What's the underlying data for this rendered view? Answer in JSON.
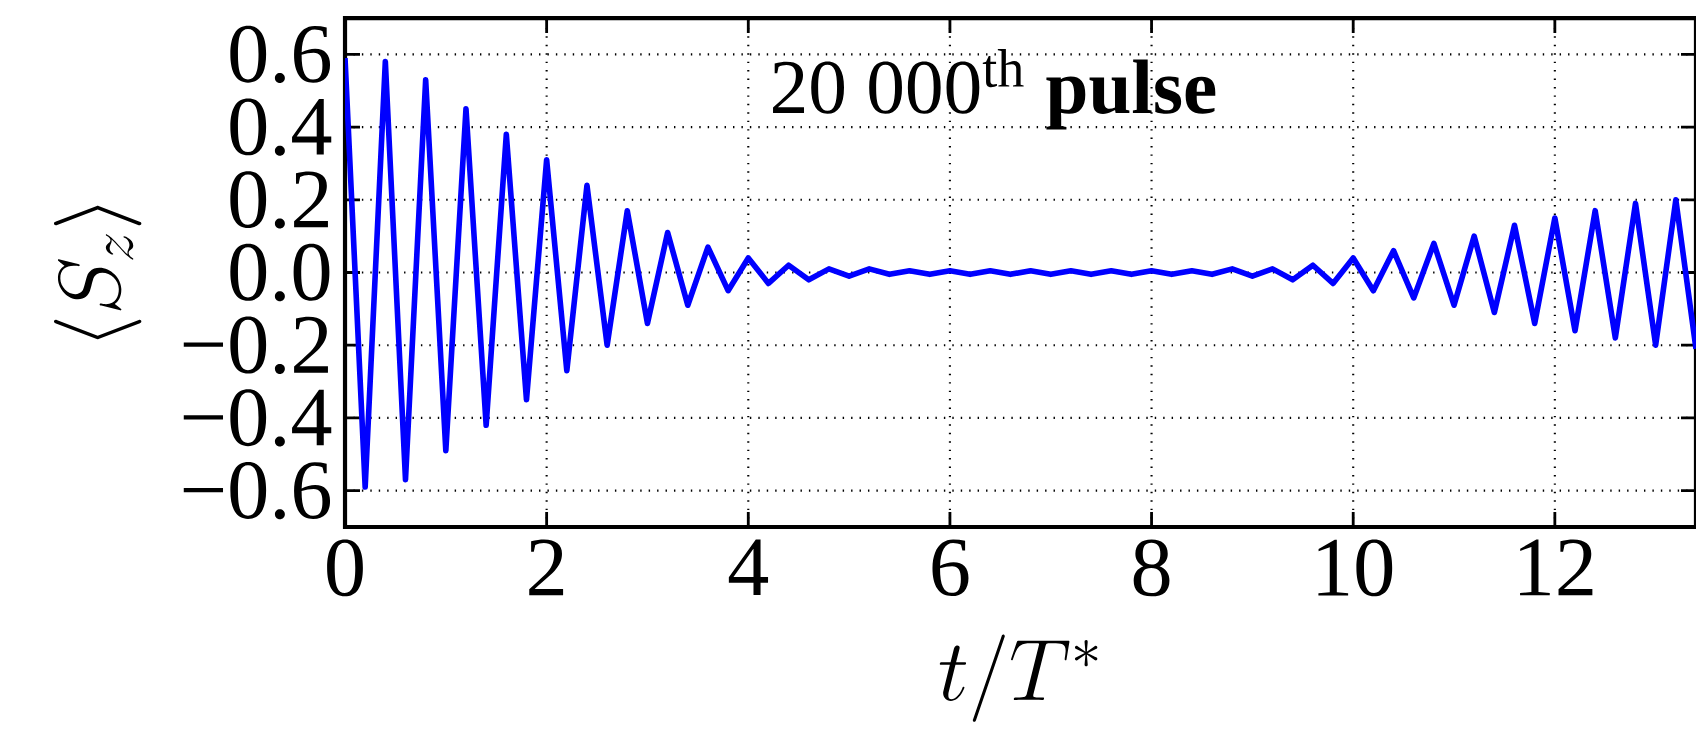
{
  "chart_data": {
    "type": "line",
    "xlabel": "t/T^{*}",
    "ylabel": "\\langle S_{z} \\rangle",
    "annotations": [
      "20 000$^{th}$ **pulse**"
    ],
    "series": [
      {
        "color": "#0000ff",
        "x": [
          0,
          0.2,
          0.4,
          0.6,
          0.8,
          1.0,
          1.2,
          1.4,
          1.6,
          1.8,
          2.0,
          2.2,
          2.4,
          2.6,
          2.8,
          3.0,
          3.2,
          3.4,
          3.6,
          3.8,
          4.0,
          4.2,
          4.4,
          4.6,
          4.8,
          5.0,
          5.2,
          5.4,
          5.6,
          5.8,
          6.0,
          6.2,
          6.4,
          6.6,
          6.8,
          7.0,
          7.2,
          7.4,
          7.6,
          7.8,
          8.0,
          8.2,
          8.4,
          8.6,
          8.8,
          9.0,
          9.2,
          9.4,
          9.6,
          9.8,
          10.0,
          10.2,
          10.4,
          10.6,
          10.8,
          11.0,
          11.2,
          11.4,
          11.6,
          11.8,
          12.0,
          12.2,
          12.4,
          12.6,
          12.8,
          13.0,
          13.2,
          13.4
        ],
        "values": [
          0.59,
          -0.59,
          0.58,
          -0.57,
          0.53,
          -0.49,
          0.45,
          -0.42,
          0.38,
          -0.35,
          0.31,
          -0.27,
          0.24,
          -0.2,
          0.17,
          -0.14,
          0.11,
          -0.09,
          0.07,
          -0.05,
          0.04,
          -0.03,
          0.02,
          -0.02,
          0.01,
          -0.01,
          0.01,
          -0.005,
          0.005,
          -0.005,
          0.005,
          -0.005,
          0.005,
          -0.005,
          0.005,
          -0.005,
          0.005,
          -0.005,
          0.005,
          -0.005,
          0.005,
          -0.005,
          0.005,
          -0.005,
          0.01,
          -0.01,
          0.01,
          -0.02,
          0.02,
          -0.03,
          0.04,
          -0.05,
          0.06,
          -0.07,
          0.08,
          -0.09,
          0.1,
          -0.11,
          0.13,
          -0.14,
          0.15,
          -0.16,
          0.17,
          -0.18,
          0.19,
          -0.2,
          0.2,
          -0.21
        ]
      }
    ],
    "xlim": [
      0,
      13.4
    ],
    "ylim": [
      -0.7,
      0.7
    ],
    "xticks": [
      0,
      2,
      4,
      6,
      8,
      10,
      12
    ],
    "yticks": [
      {
        "value": -0.6,
        "label": "−0.6"
      },
      {
        "value": -0.4,
        "label": "−0.4"
      },
      {
        "value": -0.2,
        "label": "−0.2"
      },
      {
        "value": 0,
        "label": "0.0"
      },
      0.2,
      0.4,
      0.6
    ],
    "grid": true,
    "marker": "none",
    "line_style": "solid"
  }
}
